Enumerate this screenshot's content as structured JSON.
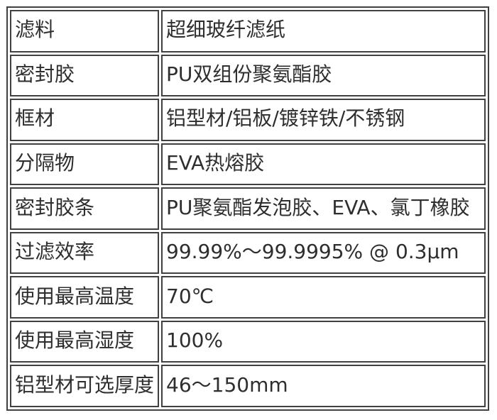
{
  "table": {
    "colors": {
      "border": "#404040",
      "text": "#2e2e2e",
      "background": "#ffffff"
    },
    "rows": [
      {
        "label": "滤料",
        "value": "超细玻纤滤纸"
      },
      {
        "label": "密封胶",
        "value": "PU双组份聚氨酯胶"
      },
      {
        "label": "框材",
        "value": "铝型材/铝板/镀锌铁/不锈钢"
      },
      {
        "label": "分隔物",
        "value": "EVA热熔胶"
      },
      {
        "label": "密封胶条",
        "value": "PU聚氨酯发泡胶、EVA、氯丁橡胶"
      },
      {
        "label": "过滤效率",
        "value": "99.99%～99.9995% @ 0.3μm"
      },
      {
        "label": "使用最高温度",
        "value": "70℃"
      },
      {
        "label": "使用最高湿度",
        "value": "100%"
      },
      {
        "label": "铝型材可选厚度",
        "value": "46～150mm"
      }
    ]
  }
}
